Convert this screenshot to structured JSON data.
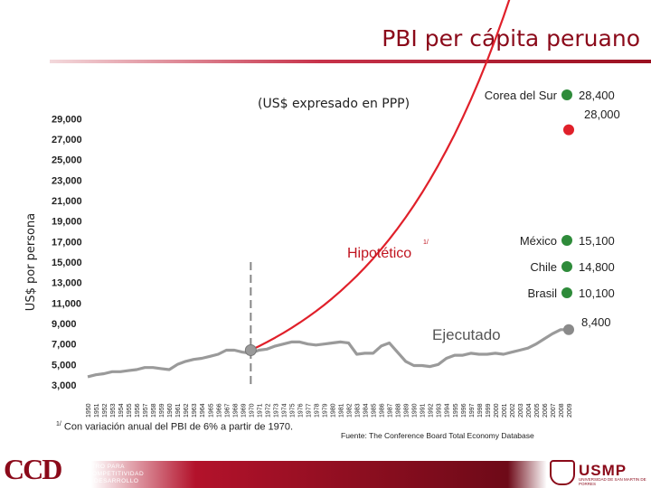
{
  "page": {
    "title": "PBI per cápita peruano",
    "subtitle": "(US$ expresado en PPP)",
    "footnote_marker": "1/",
    "footnote": "Con variación anual del PBI de 6% a partir de 1970.",
    "source": "Fuente: The Conference Board Total Economy Database",
    "logo_left": "CCD",
    "logo_left_text": [
      "CENTRO PARA",
      "LA COMPETITIVIDAD",
      "Y EL DESARROLLO"
    ],
    "logo_right": "USMP",
    "logo_right_sub": "UNIVERSIDAD DE SAN MARTIN DE PORRES"
  },
  "chart_data": {
    "type": "line",
    "title": "PBI per cápita peruano",
    "subtitle": "(US$ expresado en PPP)",
    "xlabel": "",
    "ylabel": "US$ por persona",
    "x": [
      1950,
      1951,
      1952,
      1953,
      1954,
      1955,
      1956,
      1957,
      1958,
      1959,
      1960,
      1961,
      1962,
      1963,
      1964,
      1965,
      1966,
      1967,
      1968,
      1969,
      1970,
      1971,
      1972,
      1973,
      1974,
      1975,
      1976,
      1977,
      1978,
      1979,
      1980,
      1981,
      1982,
      1983,
      1984,
      1985,
      1986,
      1987,
      1988,
      1989,
      1990,
      1991,
      1992,
      1993,
      1994,
      1995,
      1996,
      1997,
      1998,
      1999,
      2000,
      2001,
      2002,
      2003,
      2004,
      2005,
      2006,
      2007,
      2008,
      2009
    ],
    "xlim": [
      1950,
      2009
    ],
    "ylim": [
      3000,
      30000
    ],
    "yticks": [
      3000,
      5000,
      7000,
      9000,
      11000,
      13000,
      15000,
      17000,
      19000,
      21000,
      23000,
      25000,
      27000,
      29000
    ],
    "ytick_labels": [
      "3,000",
      "5,000",
      "7,000",
      "9,000",
      "11,000",
      "13,000",
      "15,000",
      "17,000",
      "19,000",
      "21,000",
      "23,000",
      "25,000",
      "27,000",
      "29,000"
    ],
    "grid": false,
    "series": [
      {
        "name": "Ejecutado",
        "color": "#9a9a9a",
        "values": [
          3800,
          4000,
          4100,
          4300,
          4300,
          4400,
          4500,
          4700,
          4700,
          4600,
          4500,
          5000,
          5300,
          5500,
          5600,
          5800,
          6000,
          6400,
          6400,
          6200,
          6100,
          6400,
          6500,
          6800,
          7000,
          7200,
          7200,
          7000,
          6900,
          7000,
          7100,
          7200,
          7100,
          6000,
          6100,
          6100,
          6800,
          7100,
          6200,
          5300,
          4900,
          4900,
          4800,
          5000,
          5600,
          5900,
          5900,
          6100,
          6000,
          6000,
          6100,
          6000,
          6200,
          6400,
          6600,
          7000,
          7500,
          8000,
          8400,
          8400
        ]
      },
      {
        "name": "Hipotético",
        "color": "#e0202a",
        "x_start": 1970,
        "annual_growth": 0.06,
        "start_value": 6400,
        "end_value": 28000
      }
    ],
    "annotations": {
      "hypothetical_label": "Hipotético",
      "hypothetical_marker": "1/",
      "executed_label": "Ejecutado",
      "executed_end_label": "8,400",
      "hypothetical_end_label": "28,000",
      "vertical_dashed_line_year": 1970
    },
    "comparison_countries": [
      {
        "name": "Corea del Sur",
        "value": 28400,
        "label": "28,400",
        "color": "#2e8b3a"
      },
      {
        "name": "México",
        "value": 15100,
        "label": "15,100",
        "color": "#2e8b3a"
      },
      {
        "name": "Chile",
        "value": 14800,
        "label": "14,800",
        "color": "#2e8b3a"
      },
      {
        "name": "Brasil",
        "value": 10100,
        "label": "10,100",
        "color": "#2e8b3a"
      }
    ]
  }
}
